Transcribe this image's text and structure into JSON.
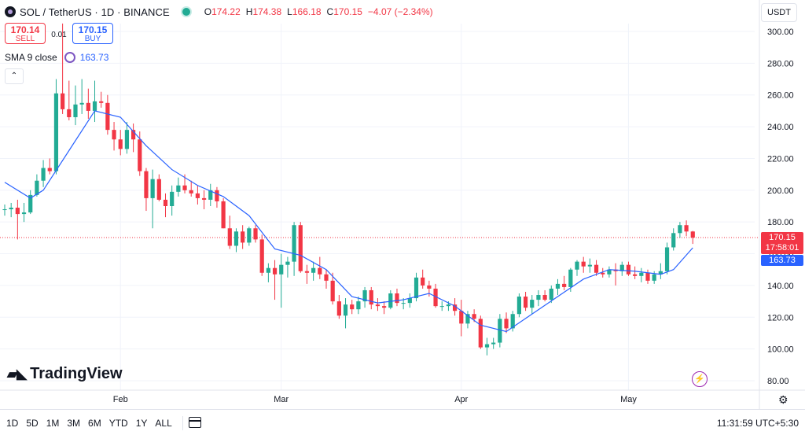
{
  "header": {
    "symbol_title": "SOL / TetherUS · 1D · BINANCE",
    "ohlc": {
      "o_label": "O",
      "o": "174.22",
      "h_label": "H",
      "h": "174.38",
      "l_label": "L",
      "l": "166.18",
      "c_label": "C",
      "c": "170.15",
      "change": "−4.07 (−2.34%)"
    }
  },
  "trade": {
    "sell_price": "170.14",
    "sell_label": "SELL",
    "spread": "0.01",
    "buy_price": "170.15",
    "buy_label": "BUY"
  },
  "indicator": {
    "label": "SMA 9 close",
    "value": "163.73"
  },
  "currency": "USDT",
  "price_tags": {
    "last_price": "170.15",
    "countdown": "17:58:01",
    "sma_value": "163.73"
  },
  "logo_text": "TradingView",
  "time_ranges": [
    "1D",
    "5D",
    "1M",
    "3M",
    "6M",
    "YTD",
    "1Y",
    "ALL"
  ],
  "clock": "11:31:59 UTC+5:30",
  "colors": {
    "up": "#22ab94",
    "down": "#f23645",
    "sma": "#2962ff",
    "accent": "#2962ff"
  },
  "icons": [
    "symbol-logo-icon",
    "market-status-icon",
    "indicator-settings-icon",
    "collapse-chevron-icon",
    "lightning-icon",
    "settings-icon",
    "calendar-range-icon"
  ],
  "chart_data": {
    "type": "candlestick",
    "y_ticks": [
      "300.00",
      "280.00",
      "260.00",
      "240.00",
      "220.00",
      "200.00",
      "180.00",
      "160.00",
      "140.00",
      "120.00",
      "100.00",
      "80.00"
    ],
    "x_ticks": [
      "Feb",
      "Mar",
      "Apr",
      "May"
    ],
    "ylim": [
      80,
      310
    ],
    "last_price": 170.15,
    "candles": [
      {
        "o": 188,
        "h": 191,
        "l": 184,
        "c": 188
      },
      {
        "o": 188,
        "h": 192,
        "l": 183,
        "c": 189
      },
      {
        "o": 189,
        "h": 194,
        "l": 169,
        "c": 185
      },
      {
        "o": 185,
        "h": 192,
        "l": 180,
        "c": 186
      },
      {
        "o": 186,
        "h": 200,
        "l": 185,
        "c": 197
      },
      {
        "o": 197,
        "h": 210,
        "l": 196,
        "c": 206
      },
      {
        "o": 206,
        "h": 219,
        "l": 202,
        "c": 214
      },
      {
        "o": 214,
        "h": 220,
        "l": 210,
        "c": 212
      },
      {
        "o": 212,
        "h": 270,
        "l": 210,
        "c": 261
      },
      {
        "o": 261,
        "h": 305,
        "l": 248,
        "c": 251
      },
      {
        "o": 251,
        "h": 269,
        "l": 244,
        "c": 246
      },
      {
        "o": 246,
        "h": 266,
        "l": 241,
        "c": 254
      },
      {
        "o": 254,
        "h": 270,
        "l": 248,
        "c": 255
      },
      {
        "o": 255,
        "h": 264,
        "l": 245,
        "c": 250
      },
      {
        "o": 250,
        "h": 269,
        "l": 243,
        "c": 256
      },
      {
        "o": 256,
        "h": 262,
        "l": 252,
        "c": 255
      },
      {
        "o": 255,
        "h": 260,
        "l": 235,
        "c": 238
      },
      {
        "o": 238,
        "h": 243,
        "l": 225,
        "c": 232
      },
      {
        "o": 232,
        "h": 238,
        "l": 222,
        "c": 226
      },
      {
        "o": 226,
        "h": 243,
        "l": 223,
        "c": 238
      },
      {
        "o": 238,
        "h": 242,
        "l": 224,
        "c": 232
      },
      {
        "o": 232,
        "h": 237,
        "l": 209,
        "c": 212
      },
      {
        "o": 212,
        "h": 214,
        "l": 187,
        "c": 195
      },
      {
        "o": 195,
        "h": 213,
        "l": 176,
        "c": 207
      },
      {
        "o": 207,
        "h": 210,
        "l": 193,
        "c": 194
      },
      {
        "o": 194,
        "h": 198,
        "l": 183,
        "c": 190
      },
      {
        "o": 190,
        "h": 203,
        "l": 184,
        "c": 199
      },
      {
        "o": 199,
        "h": 208,
        "l": 196,
        "c": 203
      },
      {
        "o": 203,
        "h": 210,
        "l": 198,
        "c": 200
      },
      {
        "o": 200,
        "h": 206,
        "l": 196,
        "c": 198
      },
      {
        "o": 198,
        "h": 203,
        "l": 191,
        "c": 195
      },
      {
        "o": 195,
        "h": 200,
        "l": 188,
        "c": 194
      },
      {
        "o": 194,
        "h": 204,
        "l": 190,
        "c": 200
      },
      {
        "o": 200,
        "h": 202,
        "l": 189,
        "c": 193
      },
      {
        "o": 193,
        "h": 195,
        "l": 176,
        "c": 176
      },
      {
        "o": 176,
        "h": 184,
        "l": 163,
        "c": 165
      },
      {
        "o": 165,
        "h": 176,
        "l": 161,
        "c": 174
      },
      {
        "o": 174,
        "h": 178,
        "l": 163,
        "c": 167
      },
      {
        "o": 167,
        "h": 177,
        "l": 165,
        "c": 176
      },
      {
        "o": 176,
        "h": 178,
        "l": 167,
        "c": 169
      },
      {
        "o": 169,
        "h": 172,
        "l": 146,
        "c": 148
      },
      {
        "o": 148,
        "h": 154,
        "l": 142,
        "c": 151
      },
      {
        "o": 151,
        "h": 156,
        "l": 131,
        "c": 147
      },
      {
        "o": 147,
        "h": 160,
        "l": 126,
        "c": 153
      },
      {
        "o": 153,
        "h": 158,
        "l": 145,
        "c": 155
      },
      {
        "o": 155,
        "h": 180,
        "l": 146,
        "c": 178
      },
      {
        "o": 178,
        "h": 180,
        "l": 148,
        "c": 149
      },
      {
        "o": 149,
        "h": 153,
        "l": 141,
        "c": 148
      },
      {
        "o": 148,
        "h": 155,
        "l": 143,
        "c": 151
      },
      {
        "o": 151,
        "h": 158,
        "l": 144,
        "c": 147
      },
      {
        "o": 147,
        "h": 150,
        "l": 138,
        "c": 143
      },
      {
        "o": 143,
        "h": 148,
        "l": 128,
        "c": 130
      },
      {
        "o": 130,
        "h": 134,
        "l": 119,
        "c": 121
      },
      {
        "o": 121,
        "h": 132,
        "l": 113,
        "c": 128
      },
      {
        "o": 128,
        "h": 131,
        "l": 122,
        "c": 125
      },
      {
        "o": 125,
        "h": 133,
        "l": 122,
        "c": 130
      },
      {
        "o": 130,
        "h": 139,
        "l": 126,
        "c": 137
      },
      {
        "o": 137,
        "h": 139,
        "l": 125,
        "c": 128
      },
      {
        "o": 128,
        "h": 132,
        "l": 124,
        "c": 127
      },
      {
        "o": 127,
        "h": 130,
        "l": 122,
        "c": 126
      },
      {
        "o": 126,
        "h": 137,
        "l": 125,
        "c": 135
      },
      {
        "o": 135,
        "h": 138,
        "l": 127,
        "c": 129
      },
      {
        "o": 129,
        "h": 132,
        "l": 125,
        "c": 129
      },
      {
        "o": 129,
        "h": 135,
        "l": 126,
        "c": 132
      },
      {
        "o": 132,
        "h": 148,
        "l": 130,
        "c": 145
      },
      {
        "o": 145,
        "h": 150,
        "l": 138,
        "c": 140
      },
      {
        "o": 140,
        "h": 143,
        "l": 133,
        "c": 138
      },
      {
        "o": 138,
        "h": 141,
        "l": 126,
        "c": 127
      },
      {
        "o": 127,
        "h": 130,
        "l": 124,
        "c": 127
      },
      {
        "o": 127,
        "h": 130,
        "l": 124,
        "c": 128
      },
      {
        "o": 128,
        "h": 132,
        "l": 121,
        "c": 124
      },
      {
        "o": 124,
        "h": 131,
        "l": 108,
        "c": 116
      },
      {
        "o": 116,
        "h": 124,
        "l": 113,
        "c": 122
      },
      {
        "o": 122,
        "h": 125,
        "l": 117,
        "c": 119
      },
      {
        "o": 119,
        "h": 121,
        "l": 100,
        "c": 101
      },
      {
        "o": 101,
        "h": 107,
        "l": 96,
        "c": 103
      },
      {
        "o": 103,
        "h": 107,
        "l": 100,
        "c": 104
      },
      {
        "o": 104,
        "h": 122,
        "l": 101,
        "c": 119
      },
      {
        "o": 119,
        "h": 123,
        "l": 110,
        "c": 113
      },
      {
        "o": 113,
        "h": 124,
        "l": 111,
        "c": 122
      },
      {
        "o": 122,
        "h": 135,
        "l": 120,
        "c": 133
      },
      {
        "o": 133,
        "h": 136,
        "l": 124,
        "c": 126
      },
      {
        "o": 126,
        "h": 134,
        "l": 122,
        "c": 131
      },
      {
        "o": 131,
        "h": 137,
        "l": 127,
        "c": 134
      },
      {
        "o": 134,
        "h": 137,
        "l": 130,
        "c": 131
      },
      {
        "o": 131,
        "h": 140,
        "l": 129,
        "c": 138
      },
      {
        "o": 138,
        "h": 144,
        "l": 134,
        "c": 141
      },
      {
        "o": 141,
        "h": 146,
        "l": 137,
        "c": 139
      },
      {
        "o": 139,
        "h": 151,
        "l": 136,
        "c": 150
      },
      {
        "o": 150,
        "h": 156,
        "l": 146,
        "c": 155
      },
      {
        "o": 155,
        "h": 158,
        "l": 148,
        "c": 152
      },
      {
        "o": 152,
        "h": 157,
        "l": 148,
        "c": 153
      },
      {
        "o": 153,
        "h": 156,
        "l": 146,
        "c": 148
      },
      {
        "o": 148,
        "h": 151,
        "l": 145,
        "c": 147
      },
      {
        "o": 147,
        "h": 152,
        "l": 145,
        "c": 150
      },
      {
        "o": 150,
        "h": 154,
        "l": 140,
        "c": 149
      },
      {
        "o": 149,
        "h": 155,
        "l": 146,
        "c": 153
      },
      {
        "o": 153,
        "h": 155,
        "l": 146,
        "c": 147
      },
      {
        "o": 147,
        "h": 152,
        "l": 144,
        "c": 146
      },
      {
        "o": 146,
        "h": 151,
        "l": 142,
        "c": 148
      },
      {
        "o": 148,
        "h": 150,
        "l": 141,
        "c": 143
      },
      {
        "o": 143,
        "h": 149,
        "l": 141,
        "c": 147
      },
      {
        "o": 147,
        "h": 154,
        "l": 144,
        "c": 149
      },
      {
        "o": 149,
        "h": 167,
        "l": 147,
        "c": 164
      },
      {
        "o": 164,
        "h": 176,
        "l": 162,
        "c": 173
      },
      {
        "o": 173,
        "h": 180,
        "l": 170,
        "c": 178
      },
      {
        "o": 178,
        "h": 181,
        "l": 171,
        "c": 174
      },
      {
        "o": 174,
        "h": 174.38,
        "l": 166.18,
        "c": 170.15
      }
    ],
    "sma": [
      {
        "i": 0,
        "v": 205
      },
      {
        "i": 4,
        "v": 195
      },
      {
        "i": 6,
        "v": 200
      },
      {
        "i": 10,
        "v": 225
      },
      {
        "i": 14,
        "v": 250
      },
      {
        "i": 18,
        "v": 246
      },
      {
        "i": 22,
        "v": 228
      },
      {
        "i": 26,
        "v": 213
      },
      {
        "i": 30,
        "v": 203
      },
      {
        "i": 34,
        "v": 196
      },
      {
        "i": 38,
        "v": 184
      },
      {
        "i": 42,
        "v": 163
      },
      {
        "i": 46,
        "v": 159
      },
      {
        "i": 50,
        "v": 150
      },
      {
        "i": 54,
        "v": 133
      },
      {
        "i": 58,
        "v": 129
      },
      {
        "i": 62,
        "v": 131
      },
      {
        "i": 66,
        "v": 135
      },
      {
        "i": 70,
        "v": 127
      },
      {
        "i": 74,
        "v": 115
      },
      {
        "i": 78,
        "v": 111
      },
      {
        "i": 82,
        "v": 122
      },
      {
        "i": 86,
        "v": 133
      },
      {
        "i": 90,
        "v": 144
      },
      {
        "i": 94,
        "v": 150
      },
      {
        "i": 98,
        "v": 149
      },
      {
        "i": 102,
        "v": 147
      },
      {
        "i": 104,
        "v": 150
      },
      {
        "i": 107,
        "v": 163.73
      }
    ]
  }
}
